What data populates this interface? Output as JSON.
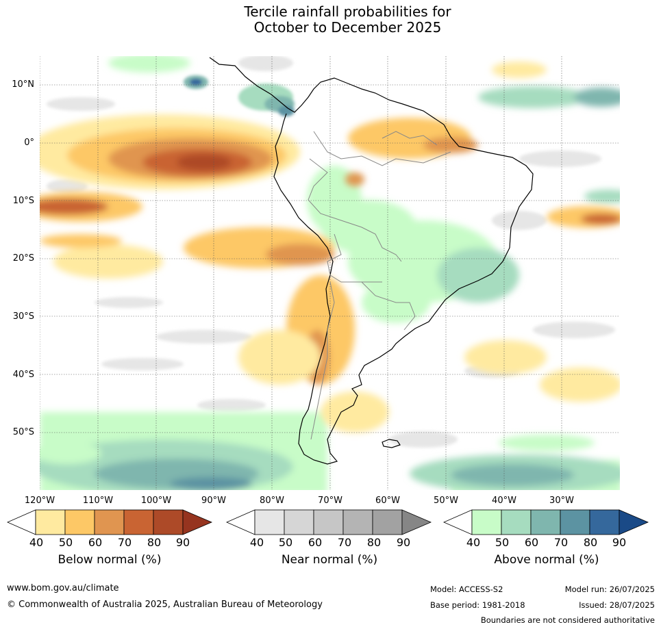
{
  "title": {
    "line1": "Tercile rainfall probabilities for",
    "line2": "October to December 2025"
  },
  "latitude_labels": [
    "10°N",
    "0°",
    "10°S",
    "20°S",
    "30°S",
    "40°S",
    "50°S"
  ],
  "longitude_labels": [
    "120°W",
    "110°W",
    "100°W",
    "90°W",
    "80°W",
    "70°W",
    "60°W",
    "50°W",
    "40°W",
    "30°W"
  ],
  "colorbars": [
    {
      "title": "Below normal (%)",
      "ticks": [
        "40",
        "50",
        "60",
        "70",
        "80",
        "90"
      ],
      "colors": [
        "#ffffff",
        "#ffeaa0",
        "#fdc866",
        "#e09550",
        "#c96433",
        "#ad4a28",
        "#96341f"
      ]
    },
    {
      "title": "Near normal (%)",
      "ticks": [
        "40",
        "50",
        "60",
        "70",
        "80",
        "90"
      ],
      "colors": [
        "#ffffff",
        "#e6e6e6",
        "#d6d6d6",
        "#c6c6c6",
        "#b4b4b4",
        "#a2a2a2",
        "#868686"
      ]
    },
    {
      "title": "Above normal (%)",
      "ticks": [
        "40",
        "50",
        "60",
        "70",
        "80",
        "90"
      ],
      "colors": [
        "#ffffff",
        "#c8fcc8",
        "#a6dcbf",
        "#7fb6ae",
        "#5c93a2",
        "#35689c",
        "#1a4a87"
      ]
    }
  ],
  "footer": {
    "website": "www.bom.gov.au/climate",
    "copyright": "© Commonwealth of Australia 2025, Australian Bureau of Meteorology",
    "model": "Model: ACCESS-S2",
    "base_period": "Base period: 1981-2018",
    "model_run": "Model run: 26/07/2025",
    "issued": "Issued: 28/07/2025",
    "disclaimer": "Boundaries are not considered authoritative"
  }
}
